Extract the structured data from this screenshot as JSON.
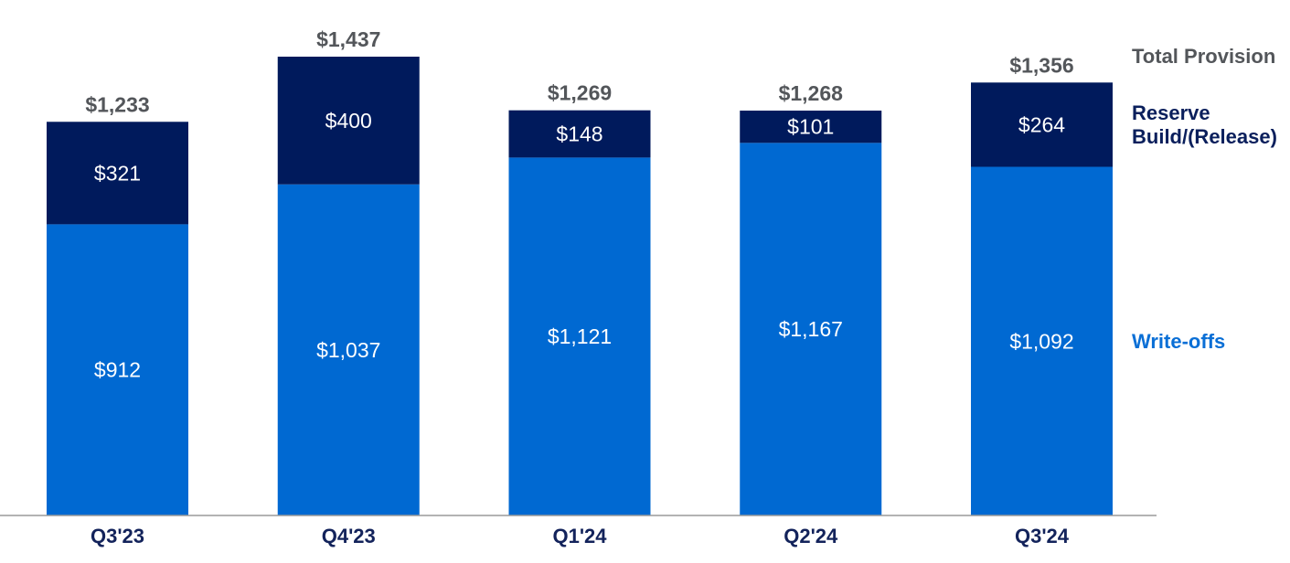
{
  "chart_data": {
    "type": "bar",
    "stacked": true,
    "categories": [
      "Q3'23",
      "Q4'23",
      "Q1'24",
      "Q2'24",
      "Q3'24"
    ],
    "series": [
      {
        "name": "Write-offs",
        "values": [
          912,
          1037,
          1121,
          1167,
          1092
        ],
        "labels": [
          "$912",
          "$1,037",
          "$1,121",
          "$1,167",
          "$1,092"
        ],
        "color": "#0069d2"
      },
      {
        "name": "Reserve Build/(Release)",
        "values": [
          321,
          400,
          148,
          101,
          264
        ],
        "labels": [
          "$321",
          "$400",
          "$148",
          "$101",
          "$264"
        ],
        "color": "#001a5c"
      }
    ],
    "totals": {
      "name": "Total Provision",
      "values": [
        1233,
        1437,
        1269,
        1268,
        1356
      ],
      "labels": [
        "$1,233",
        "$1,437",
        "$1,269",
        "$1,268",
        "$1,356"
      ]
    },
    "legend": {
      "total": "Total Provision",
      "reserve_lines": [
        "Reserve",
        "Build/(Release)"
      ],
      "writeoffs": "Write-offs",
      "placement": "right"
    },
    "colors": {
      "total_text": "#53565a",
      "reserve_text": "#0a1f5c",
      "writeoffs_text": "#0a6fd6",
      "category_text": "#13235b",
      "axis": "#9a9a9a"
    },
    "title": "",
    "xlabel": "",
    "ylabel": "",
    "ylim": [
      0,
      1500
    ],
    "grid": false
  }
}
